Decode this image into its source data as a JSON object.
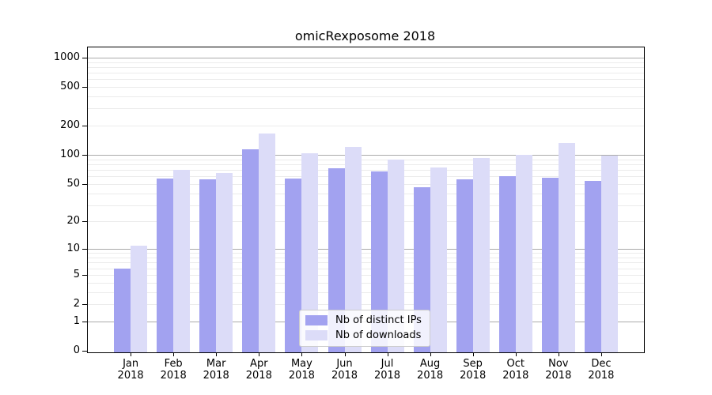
{
  "chart_data": {
    "type": "bar",
    "title": "omicRexposome 2018",
    "categories": [
      "Jan",
      "Feb",
      "Mar",
      "Apr",
      "May",
      "Jun",
      "Jul",
      "Aug",
      "Sep",
      "Oct",
      "Nov",
      "Dec"
    ],
    "x_year": "2018",
    "series": [
      {
        "name": "Nb of distinct IPs",
        "color": "#a2a2f0",
        "values": [
          6,
          57,
          56,
          115,
          57,
          73,
          68,
          46,
          56,
          60,
          58,
          54
        ]
      },
      {
        "name": "Nb of downloads",
        "color": "#dcdcf8",
        "values": [
          11,
          70,
          65,
          165,
          104,
          120,
          90,
          74,
          93,
          101,
          133,
          99
        ]
      }
    ],
    "y_ticks": [
      1000,
      500,
      200,
      100,
      50,
      20,
      10,
      5,
      2,
      1,
      0
    ],
    "y_scale": "log10(1+x)",
    "ylim": [
      0,
      1100
    ],
    "grid": true,
    "legend_position": "lower center"
  }
}
